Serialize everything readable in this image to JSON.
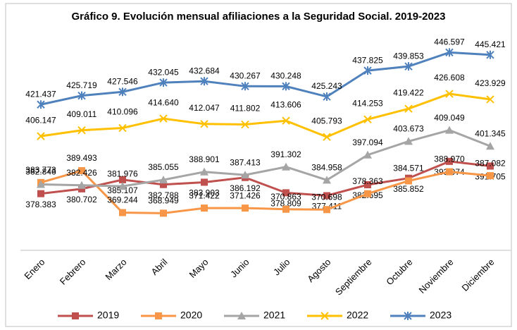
{
  "chart_data": {
    "type": "line",
    "title": "Gráfico 9. Evolución mensual  afiliaciones a la Seguridad Social. 2019-2023",
    "categories": [
      "Enero",
      "Febrero",
      "Marzo",
      "Abril",
      "Mayo",
      "Junio",
      "Julio",
      "Agosto",
      "Septiembre",
      "Octubre",
      "Noviembre",
      "Diciembre"
    ],
    "ylim": [
      350,
      460
    ],
    "legend": "bottom",
    "series": [
      {
        "name": "2019",
        "color": "#c0504d",
        "marker": "square",
        "values": [
          378.383,
          380.702,
          385.107,
          382.788,
          383.903,
          386.192,
          378.809,
          377.411,
          382.695,
          385.852,
          393.974,
          391.705
        ]
      },
      {
        "name": "2020",
        "color": "#f79646",
        "marker": "square",
        "values": [
          383.773,
          389.493,
          369.244,
          368.949,
          371.422,
          371.426,
          370.863,
          370.698,
          378.363,
          384.571,
          388.97,
          387.082
        ],
        "value_labels": [
          "383.773",
          "389.493",
          "369.244",
          "368.949",
          "371.422",
          "371.426",
          "370.863",
          "370.698",
          "378.363",
          "384.571",
          "388.970",
          "387.082"
        ]
      },
      {
        "name": "2021",
        "color": "#a5a5a5",
        "marker": "triangle",
        "values": [
          382.846,
          382.426,
          381.976,
          385.055,
          388.901,
          387.413,
          391.302,
          384.958,
          397.094,
          403.673,
          409.049,
          401.345
        ]
      },
      {
        "name": "2022",
        "color": "#ffc000",
        "marker": "x",
        "values": [
          406.147,
          409.011,
          410.096,
          414.64,
          412.047,
          411.802,
          413.606,
          405.793,
          414.253,
          419.422,
          426.608,
          423.929
        ],
        "value_labels": [
          "406.147",
          "409.011",
          "410.096",
          "414.640",
          "412.047",
          "411.802",
          "413.606",
          "405.793",
          "414.253",
          "419.422",
          "426.608",
          "423.929"
        ]
      },
      {
        "name": "2023",
        "color": "#4f81bd",
        "marker": "star",
        "values": [
          421.437,
          425.719,
          427.546,
          432.045,
          432.684,
          430.267,
          430.248,
          425.243,
          437.825,
          439.853,
          446.597,
          445.421
        ]
      }
    ]
  }
}
